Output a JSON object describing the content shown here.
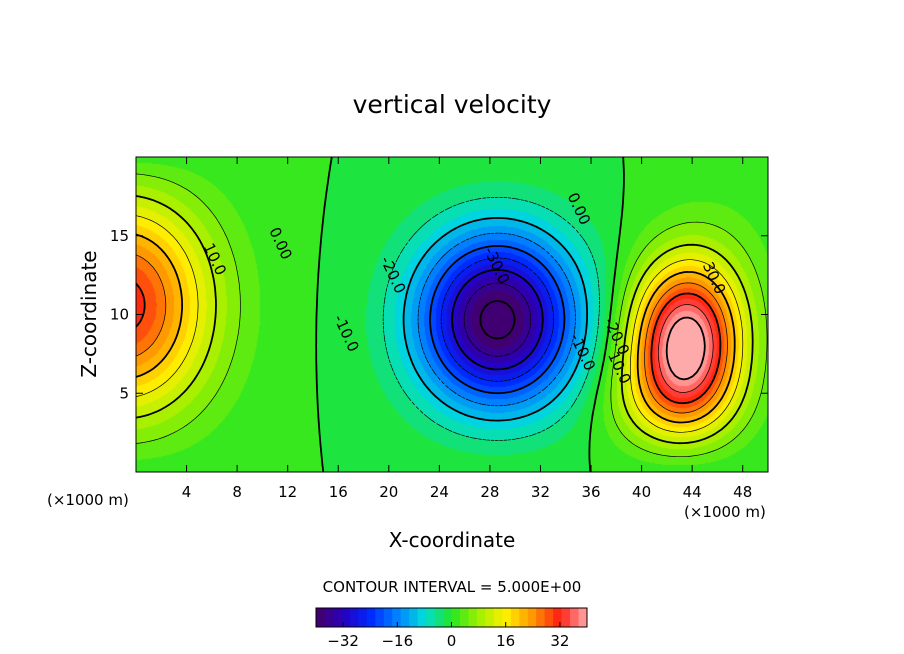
{
  "chart_data": {
    "type": "contour",
    "title": "vertical velocity",
    "xlabel": "X-coordinate",
    "ylabel": "Z-coordinate",
    "x_unit": "(×1000 m)",
    "z_unit": "(×1000 m)",
    "xlim": [
      0,
      50
    ],
    "ylim": [
      0,
      20
    ],
    "x_ticks": [
      4,
      8,
      12,
      16,
      20,
      24,
      28,
      32,
      36,
      40,
      44,
      48
    ],
    "y_ticks": [
      5,
      10,
      15
    ],
    "contour_interval_text": "CONTOUR INTERVAL = 5.000E+00",
    "contour_interval": 5,
    "value_range": [
      -40,
      40
    ],
    "colorbar_ticks": [
      -32,
      -16,
      0,
      16,
      32
    ],
    "contour_labels": [
      {
        "text": "10.0",
        "x": 6.2,
        "z": 13.5
      },
      {
        "text": "0.00",
        "x": 11.4,
        "z": 14.5
      },
      {
        "text": "-20.0",
        "x": 20.3,
        "z": 12.5
      },
      {
        "text": "-10.0",
        "x": 16.6,
        "z": 8.8
      },
      {
        "text": "-30.0",
        "x": 28.5,
        "z": 13.1
      },
      {
        "text": "-10.0",
        "x": 35.3,
        "z": 7.6
      },
      {
        "text": "0.00",
        "x": 35.0,
        "z": 16.7
      },
      {
        "text": "-20.0",
        "x": 38.0,
        "z": 8.6
      },
      {
        "text": "10.0",
        "x": 38.2,
        "z": 6.6
      },
      {
        "text": "30.0",
        "x": 45.7,
        "z": 12.3
      }
    ],
    "extrema": [
      {
        "type": "max",
        "x": 0,
        "z": 10.5,
        "value": 30
      },
      {
        "type": "min",
        "x": 29,
        "z": 9.5,
        "value": -40
      },
      {
        "type": "max",
        "x": 43.5,
        "z": 8.2,
        "value": 40
      }
    ]
  }
}
